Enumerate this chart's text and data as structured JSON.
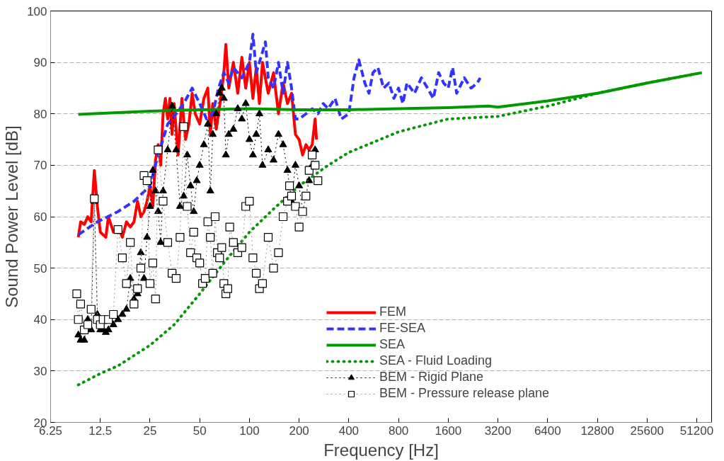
{
  "chart_data": {
    "type": "line",
    "xlabel": "Frequency [Hz]",
    "ylabel": "Sound Power Level [dB]",
    "log": "x",
    "xlim": [
      6.25,
      63000
    ],
    "xticks": [
      6.25,
      12.5,
      25,
      50,
      100,
      200,
      400,
      800,
      1600,
      3200,
      6400,
      12800,
      25600,
      51200
    ],
    "ylim": [
      20,
      100
    ],
    "yticks": [
      20,
      30,
      40,
      50,
      60,
      70,
      80,
      90,
      100
    ],
    "grid": "y",
    "legend": "bottom right",
    "series": [
      {
        "name": "FEM",
        "color": "#ff0000",
        "line_style": "solid",
        "marker": "none",
        "x": [
          9.2,
          9.5,
          10,
          10.5,
          11,
          11.5,
          12,
          12.5,
          13.5,
          14,
          15,
          16,
          17,
          18,
          19,
          20,
          21,
          22,
          23,
          24,
          25,
          26,
          27,
          28,
          29,
          30,
          31,
          32,
          33,
          34,
          35,
          37,
          39,
          41,
          43,
          45,
          47,
          50,
          53,
          56,
          58,
          60,
          63,
          67,
          70,
          72,
          75,
          80,
          85,
          90,
          95,
          100,
          105,
          110,
          115,
          120,
          130,
          140,
          150,
          160,
          170,
          180,
          190,
          200,
          210,
          220,
          230,
          240,
          250,
          255
        ],
        "values": [
          56,
          59,
          58.5,
          60,
          59,
          69,
          62,
          57,
          56,
          60,
          57,
          58,
          56,
          59,
          58,
          59,
          63,
          60,
          61,
          63,
          66,
          62,
          71,
          74,
          70,
          80,
          83,
          79,
          83,
          76,
          82,
          72,
          83,
          75,
          78,
          84,
          80,
          78,
          83,
          85,
          76,
          82,
          77,
          83,
          88,
          93.5,
          85,
          90,
          84,
          91,
          85,
          90,
          83,
          89,
          82,
          90,
          84,
          88,
          80,
          86,
          82,
          84,
          76,
          75,
          72,
          74,
          73,
          74,
          79,
          75
        ]
      },
      {
        "name": "FE-SEA",
        "color": "#3333ff",
        "line_style": "dashed",
        "marker": "none",
        "x": [
          9.2,
          12,
          16,
          20,
          25,
          28,
          32,
          36,
          40,
          45,
          50,
          55,
          60,
          65,
          70,
          75,
          80,
          90,
          100,
          105,
          110,
          120,
          125,
          130,
          140,
          150,
          160,
          170,
          180,
          190,
          200,
          220,
          240,
          260,
          280,
          300,
          330,
          360,
          400,
          430,
          460,
          500,
          530,
          560,
          600,
          650,
          700,
          750,
          800,
          850,
          900,
          1000,
          1100,
          1200,
          1300,
          1400,
          1500,
          1600,
          1700,
          1800,
          2000,
          2200,
          2400,
          2500
        ],
        "values": [
          56.5,
          59,
          61,
          63,
          66,
          72,
          78,
          80,
          82,
          85,
          82,
          79,
          80,
          85,
          88,
          86,
          89,
          87,
          90,
          95.5,
          88,
          92,
          94,
          87,
          85,
          90,
          84,
          90,
          85,
          79,
          79,
          80,
          81,
          80,
          82,
          81,
          83,
          79,
          80,
          87,
          90.5,
          86,
          84,
          88,
          89,
          85,
          86,
          83,
          85,
          82,
          86,
          84,
          87,
          85,
          83,
          88,
          86,
          85,
          89,
          84,
          87,
          85,
          86,
          87
        ]
      },
      {
        "name": "SEA",
        "color": "#009900",
        "line_style": "solid",
        "marker": "none",
        "x": [
          9.2,
          25,
          50,
          100,
          200,
          400,
          800,
          1600,
          2800,
          3200,
          6400,
          12800,
          25600,
          55000
        ],
        "values": [
          79.9,
          80.5,
          80.8,
          81,
          80.8,
          80.8,
          81,
          81.2,
          81.5,
          81.3,
          82.5,
          84,
          86,
          88
        ]
      },
      {
        "name": "SEA - Fluid Loading",
        "color": "#009900",
        "line_style": "dotted",
        "marker": "none",
        "x": [
          9.2,
          12.5,
          16,
          25,
          35,
          50,
          70,
          100,
          140,
          200,
          300,
          400,
          800,
          1600,
          3200,
          6400,
          12800,
          25600,
          55000
        ],
        "values": [
          27.3,
          29.5,
          31,
          35,
          39,
          45,
          51,
          57,
          61.5,
          66,
          70,
          72.5,
          76.5,
          79,
          79.5,
          81.5,
          84,
          86,
          88
        ]
      },
      {
        "name": "BEM - Rigid Plane",
        "color": "#000000",
        "line_style": "dotted",
        "marker": "triangle",
        "x": [
          9.2,
          9.5,
          10,
          10.5,
          11,
          11.5,
          12,
          12.5,
          13,
          13.5,
          14,
          15,
          16,
          17,
          18,
          19,
          20,
          21,
          22,
          23,
          24,
          25,
          26,
          27,
          28,
          29,
          30,
          32,
          34,
          36,
          38,
          40,
          42,
          44,
          46,
          48,
          50,
          53,
          56,
          58,
          60,
          63,
          66,
          68,
          70,
          72,
          75,
          80,
          85,
          90,
          95,
          100,
          105,
          110,
          115,
          120,
          130,
          140,
          150,
          160,
          170,
          180,
          190,
          200,
          210,
          220,
          230,
          240,
          250
        ],
        "values": [
          37,
          36,
          36,
          40,
          38,
          63,
          41,
          38,
          38,
          37.5,
          38,
          39,
          40,
          41,
          42,
          48,
          44,
          45,
          53,
          48,
          56,
          62,
          69,
          65,
          61,
          55,
          65,
          73,
          81.5,
          73,
          62,
          64,
          72,
          66,
          61,
          67,
          70,
          74,
          78,
          65,
          76,
          80,
          84,
          85,
          83,
          72,
          76,
          77,
          81,
          79,
          82,
          75,
          72,
          76,
          80,
          70,
          73,
          71,
          76,
          74,
          69,
          63,
          70,
          66,
          61,
          64,
          67,
          70,
          73
        ]
      },
      {
        "name": "BEM - Pressure release plane",
        "color": "#999999",
        "line_style": "dotted",
        "marker": "square",
        "x": [
          9,
          9.2,
          9.5,
          10,
          10.5,
          11,
          11.5,
          12,
          12.5,
          13,
          14,
          15,
          16,
          17,
          18,
          19,
          20,
          21,
          22,
          23,
          24,
          25,
          26,
          27,
          28,
          30,
          32,
          34,
          36,
          38,
          40,
          42,
          44,
          46,
          48,
          50,
          52,
          54,
          56,
          58,
          60,
          62,
          64,
          66,
          68,
          70,
          72,
          74,
          76,
          80,
          85,
          90,
          95,
          100,
          105,
          110,
          115,
          120,
          130,
          140,
          150,
          160,
          170,
          175,
          180,
          190,
          200,
          210,
          220,
          230,
          240,
          250,
          260
        ],
        "values": [
          45,
          40,
          43,
          38,
          39,
          42,
          63.5,
          40,
          39,
          40,
          40,
          41,
          57.5,
          52,
          47,
          55,
          43,
          46,
          50,
          68,
          67,
          47,
          51,
          44,
          73,
          63,
          55,
          49,
          48,
          56,
          77.5,
          62,
          53,
          57,
          52,
          51,
          47,
          48,
          59,
          56,
          49,
          60,
          53,
          52,
          54,
          47,
          45,
          46,
          58,
          55,
          53,
          54,
          62,
          63,
          52,
          49,
          46,
          47,
          56,
          50,
          53,
          60,
          63,
          66,
          64,
          62,
          58,
          61,
          64,
          69,
          72,
          70,
          67
        ]
      }
    ]
  }
}
